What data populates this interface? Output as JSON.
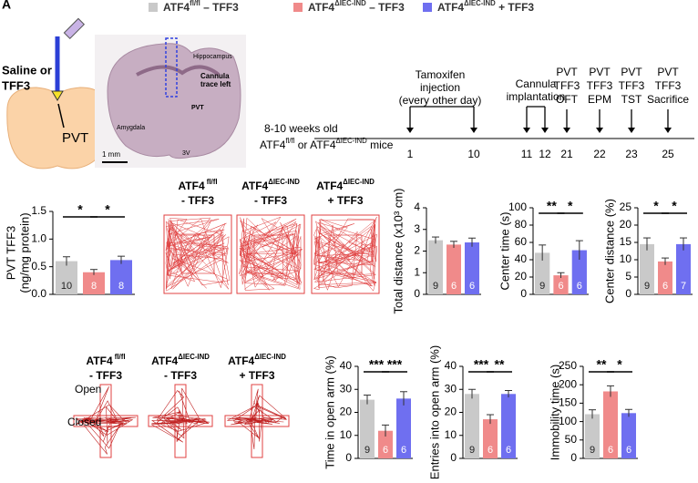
{
  "panel_letter": "A",
  "legend": [
    {
      "color": "#c9c9c9",
      "label": [
        "ATF4",
        {
          "sup": "fl/fl"
        },
        " – TFF3"
      ]
    },
    {
      "color": "#f08a8a",
      "label": [
        "ATF4",
        {
          "sup": "ΔIEC-IND"
        },
        " – TFF3"
      ]
    },
    {
      "color": "#6f6ff0",
      "label": [
        "ATF4",
        {
          "sup": "ΔIEC-IND"
        },
        " + TFF3"
      ]
    }
  ],
  "schematic": {
    "injection": [
      "Saline or",
      "TFF3"
    ],
    "target": "PVT"
  },
  "histology": {
    "labels": [
      "Hippocampus",
      "Cannula",
      "trace left",
      "PVT",
      "Amygdala",
      "3V",
      "1 mm"
    ]
  },
  "timeline": {
    "subjects": [
      [
        "8-10 weeks old"
      ],
      [
        "ATF4",
        {
          "sup": "fl/fl"
        },
        " or ATF4",
        {
          "sup": "ΔIEC-IND"
        },
        " mice"
      ]
    ],
    "events": [
      [
        "Tamoxifen",
        "injection",
        "(every other day)"
      ],
      [
        "Cannula",
        "implantation"
      ],
      [
        "PVT",
        "TFF3",
        "OFT"
      ],
      [
        "PVT",
        "TFF3",
        "EPM"
      ],
      [
        "PVT",
        "TFF3",
        "TST"
      ],
      [
        "PVT",
        "TFF3",
        "Sacrifice"
      ]
    ],
    "days": [
      1,
      10,
      11,
      12,
      21,
      22,
      23,
      25
    ]
  },
  "groups": [
    {
      "name": [
        "ATF4",
        {
          "sup": " fl/fl"
        }
      ],
      "condition": "- TFF3"
    },
    {
      "name": [
        "ATF4",
        {
          "sup": "ΔIEC-IND"
        }
      ],
      "condition": "- TFF3"
    },
    {
      "name": [
        "ATF4",
        {
          "sup": "ΔIEC-IND"
        }
      ],
      "condition": "+ TFF3"
    }
  ],
  "plus_maze": {
    "arms": [
      "Open",
      "Closed"
    ]
  },
  "chart_data": [
    {
      "type": "bar",
      "ylabel": [
        "PVT TFF3",
        "(ng/mg protein)"
      ],
      "categories": [
        null,
        null,
        null
      ],
      "values": [
        0.6,
        0.4,
        0.62
      ],
      "errors": [
        0.08,
        0.05,
        0.07
      ],
      "n": [
        10,
        8,
        8
      ],
      "colors": [
        "#c9c9c9",
        "#f08a8a",
        "#6f6ff0"
      ],
      "ylim": [
        0,
        1.5
      ],
      "yticks": [
        {
          "value": 0,
          "label": "0.0"
        },
        0.5,
        {
          "value": 1,
          "label": "1.0"
        },
        1.5
      ],
      "significance": [
        "*",
        "*"
      ]
    },
    {
      "type": "bar",
      "ylabel": [
        "Total distance (x10³ cm)"
      ],
      "categories": [
        null,
        null,
        null
      ],
      "values": [
        2.5,
        2.3,
        2.4
      ],
      "errors": [
        0.15,
        0.15,
        0.2
      ],
      "n": [
        9,
        6,
        6
      ],
      "colors": [
        "#c9c9c9",
        "#f08a8a",
        "#6f6ff0"
      ],
      "ylim": [
        0,
        4
      ],
      "yticks": [
        0,
        1,
        2,
        3,
        4
      ],
      "significance": []
    },
    {
      "type": "bar",
      "ylabel": [
        "Center time (s)"
      ],
      "categories": [
        null,
        null,
        null
      ],
      "values": [
        48,
        22,
        51
      ],
      "errors": [
        9,
        3,
        11
      ],
      "n": [
        9,
        6,
        6
      ],
      "colors": [
        "#c9c9c9",
        "#f08a8a",
        "#6f6ff0"
      ],
      "ylim": [
        0,
        100
      ],
      "yticks": [
        0,
        20,
        40,
        60,
        80,
        100
      ],
      "significance": [
        "**",
        "*"
      ]
    },
    {
      "type": "bar",
      "ylabel": [
        "Center distance (%)"
      ],
      "categories": [
        null,
        null,
        null
      ],
      "values": [
        14.5,
        9.5,
        14.5
      ],
      "errors": [
        1.8,
        1,
        1.8
      ],
      "n": [
        9,
        6,
        7
      ],
      "colors": [
        "#c9c9c9",
        "#f08a8a",
        "#6f6ff0"
      ],
      "ylim": [
        0,
        25
      ],
      "yticks": [
        0,
        5,
        10,
        15,
        20,
        25
      ],
      "significance": [
        "*",
        "*"
      ]
    },
    {
      "type": "bar",
      "ylabel": [
        "Time in open arm (%)"
      ],
      "categories": [
        null,
        null,
        null
      ],
      "values": [
        25.5,
        12,
        26
      ],
      "errors": [
        2,
        2.5,
        3
      ],
      "n": [
        9,
        6,
        6
      ],
      "colors": [
        "#c9c9c9",
        "#f08a8a",
        "#6f6ff0"
      ],
      "ylim": [
        0,
        40
      ],
      "yticks": [
        0,
        10,
        20,
        30,
        40
      ],
      "significance": [
        "***",
        "***"
      ]
    },
    {
      "type": "bar",
      "ylabel": [
        "Entries into open arm (%)"
      ],
      "categories": [
        null,
        null,
        null
      ],
      "values": [
        28,
        17,
        28
      ],
      "errors": [
        2,
        2,
        1.5
      ],
      "n": [
        9,
        6,
        6
      ],
      "colors": [
        "#c9c9c9",
        "#f08a8a",
        "#6f6ff0"
      ],
      "ylim": [
        0,
        40
      ],
      "yticks": [
        0,
        10,
        20,
        30,
        40
      ],
      "significance": [
        "***",
        "**"
      ]
    },
    {
      "type": "bar",
      "ylabel": [
        "Immobility time (s)"
      ],
      "categories": [
        null,
        null,
        null
      ],
      "values": [
        120,
        182,
        123
      ],
      "errors": [
        12,
        15,
        10
      ],
      "n": [
        9,
        6,
        6
      ],
      "colors": [
        "#c9c9c9",
        "#f08a8a",
        "#6f6ff0"
      ],
      "ylim": [
        0,
        250
      ],
      "yticks": [
        0,
        50,
        100,
        150,
        200,
        250
      ],
      "significance": [
        "**",
        "*"
      ]
    }
  ]
}
